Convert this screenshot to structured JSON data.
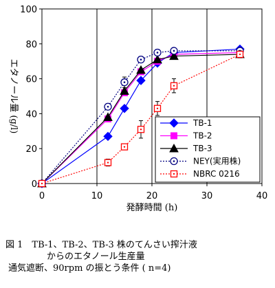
{
  "chart_data": {
    "type": "line",
    "xlabel": "発酵時間 (h)",
    "ylabel": "エタノール量 (g/l)",
    "xlim": [
      0,
      40
    ],
    "ylim": [
      0,
      100
    ],
    "xticks": [
      0,
      10,
      20,
      30,
      40
    ],
    "yticks": [
      0,
      20,
      40,
      60,
      80,
      100
    ],
    "grid": "vertical gridlines at x = 10, 20, 30",
    "legend_position": "lower-right",
    "series": [
      {
        "name": "TB-1",
        "color": "#0000ff",
        "marker": "diamond-filled",
        "dash": "solid",
        "x": [
          0,
          12,
          15,
          18,
          21,
          24,
          36
        ],
        "y": [
          0,
          27,
          43,
          59,
          69,
          75,
          77
        ],
        "err": [
          0,
          0,
          0,
          0,
          0,
          0,
          0
        ]
      },
      {
        "name": "TB-2",
        "color": "#ff00ff",
        "marker": "square-filled",
        "dash": "solid",
        "x": [
          0,
          12,
          15,
          18,
          21,
          24,
          36
        ],
        "y": [
          0,
          37,
          52,
          64,
          70,
          74,
          75
        ],
        "err": [
          0,
          0,
          0,
          0,
          0,
          0,
          0
        ]
      },
      {
        "name": "TB-3",
        "color": "#000000",
        "marker": "triangle-filled",
        "dash": "solid",
        "x": [
          0,
          12,
          15,
          18,
          21,
          24,
          36
        ],
        "y": [
          0,
          38,
          53,
          65,
          71,
          73,
          74
        ],
        "err": [
          0,
          0,
          0,
          0,
          0,
          0,
          0
        ]
      },
      {
        "name": "NEY(実用株)",
        "color": "#000080",
        "marker": "circle-dot",
        "dash": "dotted",
        "x": [
          0,
          12,
          15,
          18,
          21,
          24,
          36
        ],
        "y": [
          0,
          44,
          58,
          71,
          75,
          76,
          76
        ],
        "err": [
          0,
          0,
          3,
          0,
          0,
          0,
          0
        ]
      },
      {
        "name": "NBRC 0216",
        "color": "#ff0000",
        "marker": "square-dot",
        "dash": "dotted",
        "x": [
          0,
          12,
          15,
          18,
          21,
          24,
          36
        ],
        "y": [
          0,
          12,
          21,
          31,
          43,
          56,
          74
        ],
        "err": [
          0,
          2,
          1,
          5,
          4,
          4,
          2
        ]
      }
    ]
  },
  "caption": {
    "line1": "図 1　TB-1、TB-2、TB-3 株のてんさい搾汁液",
    "line2": "からのエタノール生産量",
    "line3": "通気遮断、90rpm の振とう条件 ( n=4)"
  }
}
